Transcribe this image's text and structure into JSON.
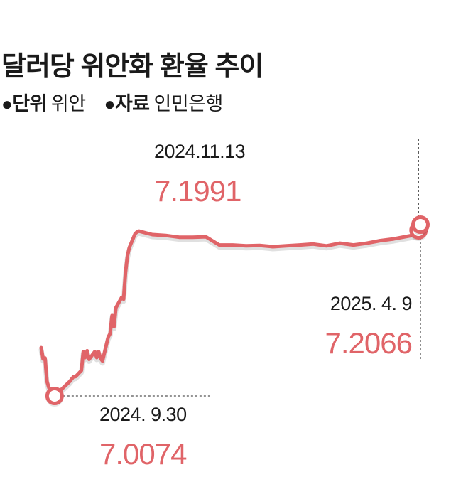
{
  "title": "달러당 위안화 환율 추이",
  "meta": {
    "unit_key": "단위",
    "unit_value": "위안",
    "source_key": "자료",
    "source_value": "인민은행",
    "bullet": "●"
  },
  "colors": {
    "line": "#e06468",
    "text": "#1a1a1a",
    "guide": "#555555"
  },
  "chart_data": {
    "type": "line",
    "title": "달러당 위안화 환율 추이",
    "unit": "위안",
    "x": [
      "2024-09-23",
      "2024-09-24",
      "2024-09-25",
      "2024-09-26",
      "2024-09-27",
      "2024-09-30",
      "2024-10-08",
      "2024-10-09",
      "2024-10-10",
      "2024-10-11",
      "2024-10-14",
      "2024-10-15",
      "2024-10-16",
      "2024-10-17",
      "2024-10-18",
      "2024-10-21",
      "2024-10-22",
      "2024-10-23",
      "2024-10-24",
      "2024-10-25",
      "2024-10-28",
      "2024-10-29",
      "2024-10-30",
      "2024-10-31",
      "2024-11-01",
      "2024-11-04",
      "2024-11-05",
      "2024-11-06",
      "2024-11-07",
      "2024-11-08",
      "2024-11-11",
      "2024-11-12",
      "2024-11-13",
      "2024-11-20",
      "2024-11-27",
      "2024-12-04",
      "2024-12-11",
      "2024-12-18",
      "2024-12-25",
      "2025-01-01",
      "2025-01-08",
      "2025-01-15",
      "2025-01-22",
      "2025-01-29",
      "2025-02-05",
      "2025-02-12",
      "2025-02-19",
      "2025-02-26",
      "2025-03-05",
      "2025-03-12",
      "2025-03-19",
      "2025-03-26",
      "2025-04-02",
      "2025-04-07",
      "2025-04-08",
      "2025-04-09"
    ],
    "values": [
      7.0635,
      7.0505,
      7.0515,
      7.0245,
      7.017,
      7.0074,
      7.0245,
      7.0275,
      7.03,
      7.03,
      7.037,
      7.059,
      7.052,
      7.06,
      7.05,
      7.059,
      7.052,
      7.059,
      7.051,
      7.048,
      7.076,
      7.08,
      7.101,
      7.088,
      7.11,
      7.122,
      7.12,
      7.151,
      7.17,
      7.18,
      7.196,
      7.198,
      7.1991,
      7.195,
      7.194,
      7.192,
      7.192,
      7.1925,
      7.183,
      7.183,
      7.182,
      7.1825,
      7.181,
      7.182,
      7.183,
      7.184,
      7.182,
      7.185,
      7.183,
      7.185,
      7.188,
      7.19,
      7.193,
      7.195,
      7.2,
      7.2066
    ],
    "annotations": [
      {
        "date_label": "2024. 9.30",
        "value_label": "7.0074"
      },
      {
        "date_label": "2024.11.13",
        "value_label": "7.1991"
      },
      {
        "date_label": "2025. 4. 9",
        "value_label": "7.2066"
      }
    ]
  }
}
